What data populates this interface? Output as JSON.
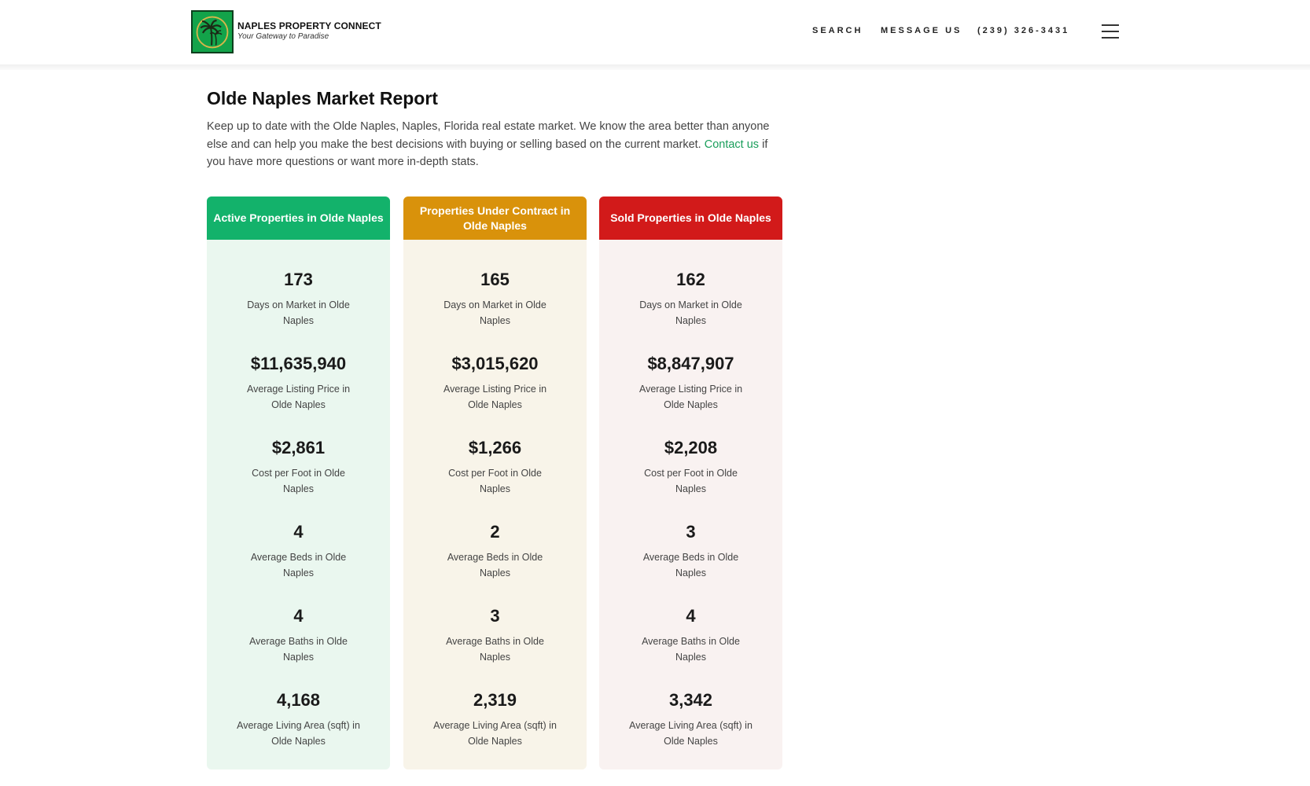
{
  "header": {
    "brand_name": "NAPLES PROPERTY CONNECT",
    "brand_tagline": "Your Gateway to Paradise",
    "nav": {
      "search": "SEARCH",
      "message": "MESSAGE US",
      "phone": "(239) 326-3431"
    },
    "logo_icon": "palm-tree-icon",
    "menu_icon": "hamburger-menu-icon"
  },
  "main": {
    "title": "Olde Naples Market Report",
    "intro_text": "Keep up to date with the Olde Naples, Naples, Florida real estate market. We know the area better than anyone else and can help you make the best decisions with buying or selling based on the current market.",
    "contact_link": "Contact us",
    "intro_tail": " if you have more questions or want more in-depth stats."
  },
  "cards": [
    {
      "title": "Active Properties in Olde Naples",
      "header_color": "#13b26b",
      "body_color": "#eaf7ef",
      "stats": [
        {
          "value": "173",
          "label": "Days on Market in Olde Naples"
        },
        {
          "value": "$11,635,940",
          "label": "Average Listing Price in Olde Naples"
        },
        {
          "value": "$2,861",
          "label": "Cost per Foot in Olde Naples"
        },
        {
          "value": "4",
          "label": "Average Beds in Olde Naples"
        },
        {
          "value": "4",
          "label": "Average Baths in Olde Naples"
        },
        {
          "value": "4,168",
          "label": "Average Living Area (sqft) in Olde Naples"
        }
      ]
    },
    {
      "title": "Properties Under Contract in Olde Naples",
      "header_color": "#d9920b",
      "body_color": "#f8f4e9",
      "stats": [
        {
          "value": "165",
          "label": "Days on Market in Olde Naples"
        },
        {
          "value": "$3,015,620",
          "label": "Average Listing Price in Olde Naples"
        },
        {
          "value": "$1,266",
          "label": "Cost per Foot in Olde Naples"
        },
        {
          "value": "2",
          "label": "Average Beds in Olde Naples"
        },
        {
          "value": "3",
          "label": "Average Baths in Olde Naples"
        },
        {
          "value": "2,319",
          "label": "Average Living Area (sqft) in Olde Naples"
        }
      ]
    },
    {
      "title": "Sold Properties in Olde Naples",
      "header_color": "#d21a1a",
      "body_color": "#f9f2f1",
      "stats": [
        {
          "value": "162",
          "label": "Days on Market in Olde Naples"
        },
        {
          "value": "$8,847,907",
          "label": "Average Listing Price in Olde Naples"
        },
        {
          "value": "$2,208",
          "label": "Cost per Foot in Olde Naples"
        },
        {
          "value": "3",
          "label": "Average Beds in Olde Naples"
        },
        {
          "value": "4",
          "label": "Average Baths in Olde Naples"
        },
        {
          "value": "3,342",
          "label": "Average Living Area (sqft) in Olde Naples"
        }
      ]
    }
  ]
}
